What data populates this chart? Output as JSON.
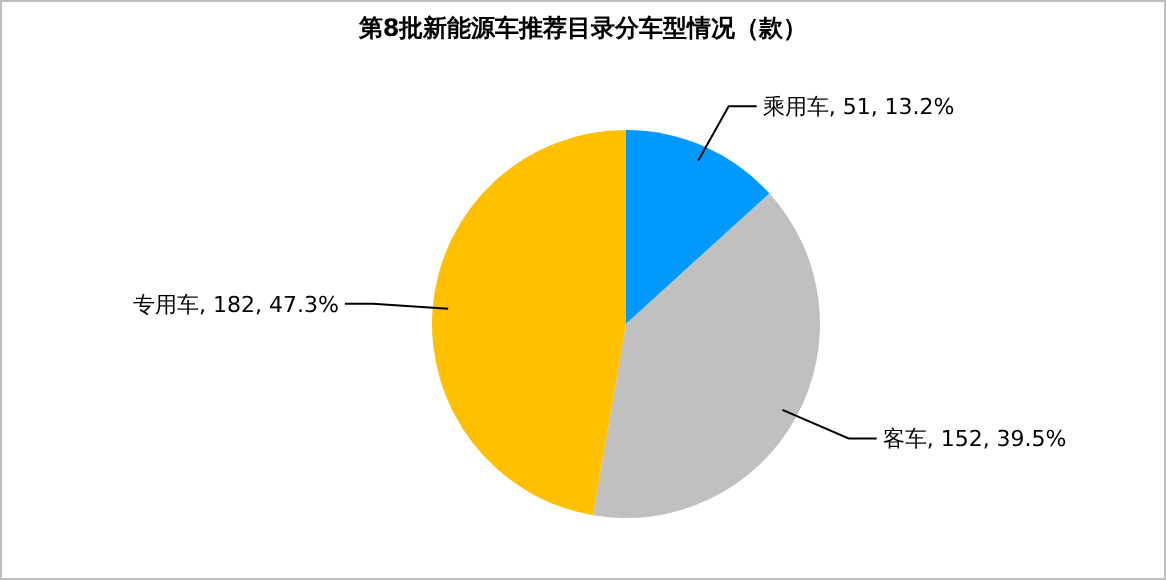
{
  "chart_data": {
    "type": "pie",
    "title": "第8批新能源车推荐目录分车型情况（款）",
    "categories": [
      "乘用车",
      "客车",
      "专用车"
    ],
    "values": [
      51,
      152,
      182
    ],
    "colors": [
      "#0099ff",
      "#c0c0c0",
      "#ffc000"
    ],
    "value_labels": [
      ", 51, 13.2%",
      ", 152, 39.5%",
      ", 182, 47.3%"
    ],
    "legend": false
  }
}
